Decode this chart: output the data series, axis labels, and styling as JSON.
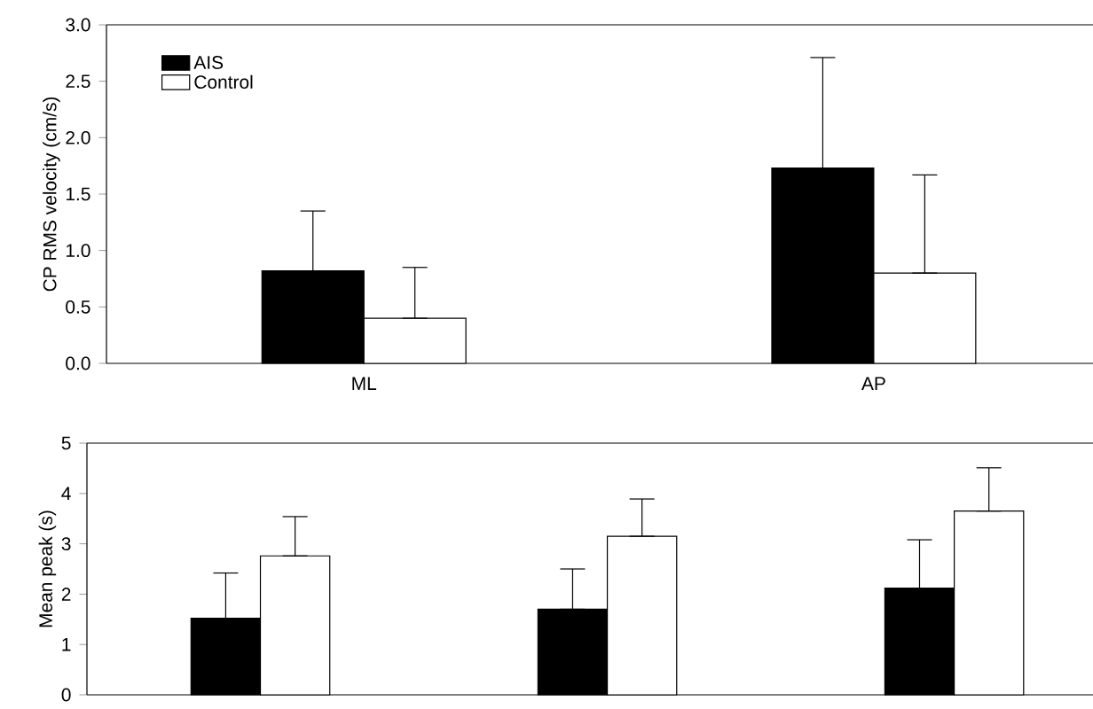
{
  "chart_data": [
    {
      "type": "bar",
      "ylabel": "CP RMS velocity (cm/s)",
      "categories": [
        "ML",
        "AP"
      ],
      "ylim": [
        0,
        3
      ],
      "yticks": [
        {
          "value": 0,
          "label": "0.0"
        },
        0.5,
        {
          "value": 1,
          "label": "1.0"
        },
        1.5,
        {
          "value": 2,
          "label": "2.0"
        },
        2.5,
        {
          "value": 3,
          "label": "3.0"
        }
      ],
      "legend": "top left",
      "grid": false,
      "series": [
        {
          "name": "AIS",
          "color": "#000000",
          "values": [
            0.82,
            1.73
          ],
          "errors": [
            [
              0.82,
              1.35
            ],
            [
              1.73,
              2.71
            ]
          ]
        },
        {
          "name": "Control",
          "color": "#ffffff",
          "values": [
            0.4,
            0.8
          ],
          "errors": [
            [
              0.4,
              0.85
            ],
            [
              0.8,
              1.67
            ]
          ]
        }
      ]
    },
    {
      "type": "bar",
      "ylabel": "Mean peak (s)",
      "categories": [
        null,
        null,
        null
      ],
      "ylim": [
        0,
        5
      ],
      "yticks": [
        0,
        1,
        2,
        3,
        4,
        5
      ],
      "tick_labels": "y",
      "grid": false,
      "series": [
        {
          "color": "#000000",
          "values": [
            1.52,
            1.7,
            2.12
          ],
          "errors": [
            [
              1.52,
              2.42
            ],
            [
              1.7,
              2.5
            ],
            [
              2.12,
              3.08
            ]
          ]
        },
        {
          "color": "#ffffff",
          "values": [
            2.76,
            3.15,
            3.65
          ],
          "errors": [
            [
              2.76,
              3.54
            ],
            [
              3.15,
              3.89
            ],
            [
              3.65,
              4.51
            ]
          ]
        }
      ]
    }
  ]
}
